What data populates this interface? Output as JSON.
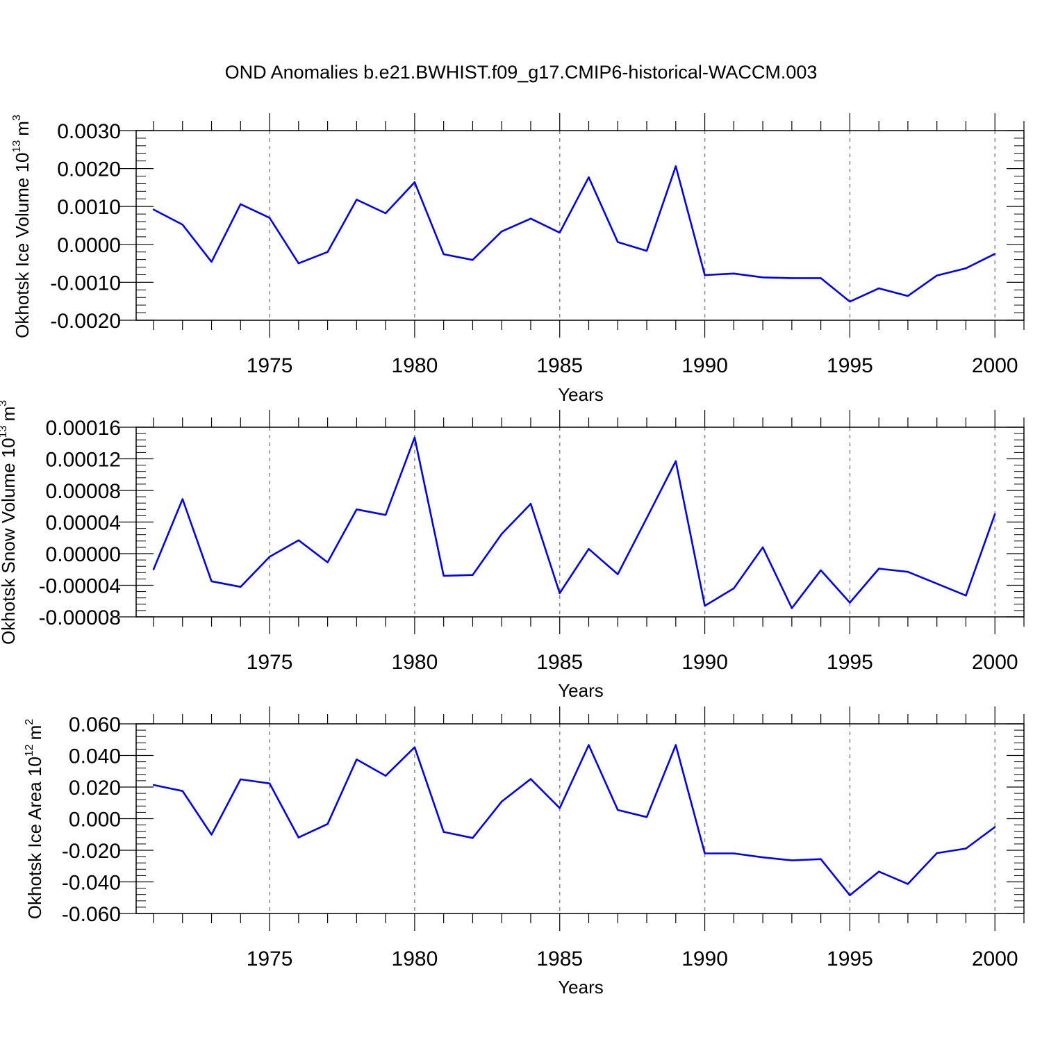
{
  "title": "OND Anomalies b.e21.BWHIST.f09_g17.CMIP6-historical-WACCM.003",
  "line_color": "#0000ff",
  "chart_data": [
    {
      "type": "line",
      "title": "OND Anomalies b.e21.BWHIST.f09_g17.CMIP6-historical-WACCM.003",
      "ylabel": "Okhotsk Ice Volume 10",
      "ylabel_exp": "13",
      "ylabel_unit": "m",
      "ylabel_unit_exp": "3",
      "xlabel": "Years",
      "xlim": [
        1971,
        2001
      ],
      "ylim": [
        -0.002,
        0.003
      ],
      "yticks": [
        -0.002,
        -0.001,
        0.0,
        0.001,
        0.002,
        0.003
      ],
      "ytick_labels": [
        "-0.0020",
        "-0.0010",
        "0.0000",
        "0.0010",
        "0.0020",
        "0.0030"
      ],
      "xticks": [
        1975,
        1980,
        1985,
        1990,
        1995,
        2000
      ],
      "xtick_labels": [
        "1975",
        "1980",
        "1985",
        "1990",
        "1995",
        "2000"
      ],
      "grid": "vertical dashed at major x ticks",
      "x": [
        1971,
        1972,
        1973,
        1974,
        1975,
        1976,
        1977,
        1978,
        1979,
        1980,
        1981,
        1982,
        1983,
        1984,
        1985,
        1986,
        1987,
        1988,
        1989,
        1990,
        1991,
        1992,
        1993,
        1994,
        1995,
        1996,
        1997,
        1998,
        1999,
        2000
      ],
      "values": [
        0.00092,
        0.00052,
        -0.00046,
        0.00106,
        0.0007,
        -0.0005,
        -0.0002,
        0.00118,
        0.00082,
        0.00164,
        -0.00026,
        -0.00041,
        0.00034,
        0.00068,
        0.00031,
        0.00177,
        6e-05,
        -0.00017,
        0.00206,
        -0.00081,
        -0.00077,
        -0.00087,
        -0.00089,
        -0.00089,
        -0.00151,
        -0.00116,
        -0.00136,
        -0.00082,
        -0.00063,
        -0.00025
      ]
    },
    {
      "type": "line",
      "ylabel": "Okhotsk Snow Volume 10",
      "ylabel_exp": "13",
      "ylabel_unit": "m",
      "ylabel_unit_exp": "3",
      "xlabel": "Years",
      "xlim": [
        1971,
        2001
      ],
      "ylim": [
        -8e-05,
        0.00016
      ],
      "yticks": [
        -8e-05,
        -4e-05,
        0.0,
        4e-05,
        8e-05,
        0.00012,
        0.00016
      ],
      "ytick_labels": [
        "-0.00008",
        "-0.00004",
        "0.00000",
        "0.00004",
        "0.00008",
        "0.00012",
        "0.00016"
      ],
      "xticks": [
        1975,
        1980,
        1985,
        1990,
        1995,
        2000
      ],
      "xtick_labels": [
        "1975",
        "1980",
        "1985",
        "1990",
        "1995",
        "2000"
      ],
      "grid": "vertical dashed at major x ticks",
      "x": [
        1971,
        1972,
        1973,
        1974,
        1975,
        1976,
        1977,
        1978,
        1979,
        1980,
        1981,
        1982,
        1983,
        1984,
        1985,
        1986,
        1987,
        1988,
        1989,
        1990,
        1991,
        1992,
        1993,
        1994,
        1995,
        1996,
        1997,
        1998,
        1999,
        2000
      ],
      "values": [
        -2e-05,
        6.9e-05,
        -3.5e-05,
        -4.2e-05,
        -4e-06,
        1.7e-05,
        -1.1e-05,
        5.6e-05,
        4.9e-05,
        0.000147,
        -2.8e-05,
        -2.7e-05,
        2.5e-05,
        6.3e-05,
        -5e-05,
        6e-06,
        -2.6e-05,
        4.5e-05,
        0.000117,
        -6.6e-05,
        -4.4e-05,
        8e-06,
        -6.9e-05,
        -2.1e-05,
        -6.2e-05,
        -1.9e-05,
        -2.3e-05,
        -3.8e-05,
        -5.3e-05,
        5e-05
      ]
    },
    {
      "type": "line",
      "ylabel": "Okhotsk Ice Area 10",
      "ylabel_exp": "12",
      "ylabel_unit": "m",
      "ylabel_unit_exp": "2",
      "xlabel": "Years",
      "xlim": [
        1971,
        2001
      ],
      "ylim": [
        -0.06,
        0.06
      ],
      "yticks": [
        -0.06,
        -0.04,
        -0.02,
        0.0,
        0.02,
        0.04,
        0.06
      ],
      "ytick_labels": [
        "-0.060",
        "-0.040",
        "-0.020",
        "0.000",
        "0.020",
        "0.040",
        "0.060"
      ],
      "xticks": [
        1975,
        1980,
        1985,
        1990,
        1995,
        2000
      ],
      "xtick_labels": [
        "1975",
        "1980",
        "1985",
        "1990",
        "1995",
        "2000"
      ],
      "grid": "vertical dashed at major x ticks",
      "x": [
        1971,
        1972,
        1973,
        1974,
        1975,
        1976,
        1977,
        1978,
        1979,
        1980,
        1981,
        1982,
        1983,
        1984,
        1985,
        1986,
        1987,
        1988,
        1989,
        1990,
        1991,
        1992,
        1993,
        1994,
        1995,
        1996,
        1997,
        1998,
        1999,
        2000
      ],
      "values": [
        0.0213,
        0.0175,
        -0.0101,
        0.0249,
        0.0223,
        -0.0119,
        -0.0034,
        0.0375,
        0.0271,
        0.0452,
        -0.0084,
        -0.0122,
        0.0108,
        0.0251,
        0.0067,
        0.0466,
        0.0055,
        0.001,
        0.0466,
        -0.022,
        -0.022,
        -0.0245,
        -0.0264,
        -0.0256,
        -0.0485,
        -0.0335,
        -0.0413,
        -0.0218,
        -0.0189,
        -0.0053
      ]
    }
  ]
}
